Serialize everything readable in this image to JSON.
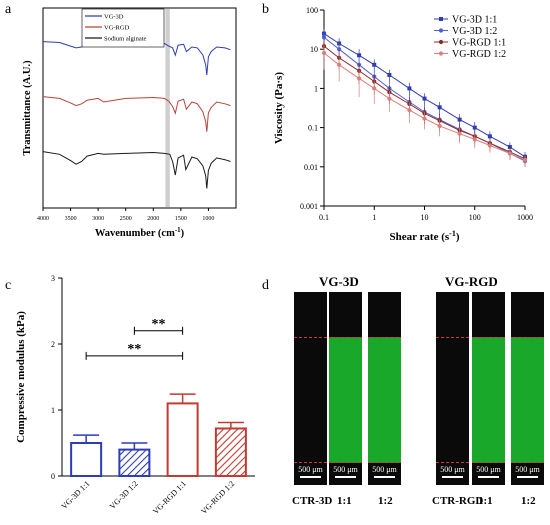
{
  "panels": {
    "a": "a",
    "b": "b",
    "c": "c",
    "d": "d"
  },
  "chart_data": [
    {
      "type": "line",
      "panel": "a",
      "xlabel": "Wavenumber (cm",
      "xlabel_sup": "-1",
      "xlabel_end": ")",
      "ylabel": "Transmittance (A.U.)",
      "x_ticks": [
        "4000",
        "3500",
        "3000",
        "2500",
        "2000",
        "1500",
        "1000"
      ],
      "xlim": [
        4000,
        500
      ],
      "highlight_band": [
        1780,
        1700
      ],
      "series": [
        {
          "name": "VG-3D",
          "color": "#2e3db5",
          "offset": 2.0,
          "x": [
            4000,
            3700,
            3500,
            3400,
            3300,
            3200,
            3000,
            2900,
            2500,
            2000,
            1800,
            1720,
            1650,
            1600,
            1550,
            1450,
            1400,
            1300,
            1200,
            1100,
            1050,
            1030,
            1000,
            950,
            850,
            700,
            600
          ],
          "y": [
            0.92,
            0.9,
            0.82,
            0.78,
            0.8,
            0.86,
            0.88,
            0.86,
            0.88,
            0.9,
            0.88,
            0.82,
            0.78,
            0.62,
            0.84,
            0.86,
            0.7,
            0.8,
            0.78,
            0.62,
            0.4,
            0.18,
            0.58,
            0.7,
            0.8,
            0.78,
            0.74
          ]
        },
        {
          "name": "VG-RGD",
          "color": "#b8433a",
          "offset": 1.0,
          "x": [
            4000,
            3700,
            3500,
            3400,
            3300,
            3200,
            3000,
            2900,
            2500,
            2000,
            1800,
            1720,
            1650,
            1600,
            1550,
            1450,
            1400,
            1300,
            1200,
            1100,
            1050,
            1030,
            1000,
            950,
            850,
            700,
            600
          ],
          "y": [
            0.92,
            0.88,
            0.78,
            0.72,
            0.76,
            0.84,
            0.88,
            0.8,
            0.88,
            0.9,
            0.88,
            0.82,
            0.7,
            0.55,
            0.82,
            0.86,
            0.64,
            0.8,
            0.76,
            0.58,
            0.36,
            0.14,
            0.56,
            0.68,
            0.8,
            0.76,
            0.72
          ]
        },
        {
          "name": "Sodium alginate",
          "color": "#1a1a1a",
          "offset": 0.0,
          "x": [
            4000,
            3700,
            3500,
            3400,
            3300,
            3200,
            3000,
            2900,
            2500,
            2000,
            1800,
            1700,
            1650,
            1600,
            1550,
            1450,
            1410,
            1300,
            1200,
            1100,
            1050,
            1030,
            1000,
            950,
            850,
            700,
            600
          ],
          "y": [
            0.92,
            0.86,
            0.72,
            0.64,
            0.7,
            0.82,
            0.88,
            0.86,
            0.88,
            0.9,
            0.88,
            0.86,
            0.7,
            0.4,
            0.78,
            0.84,
            0.52,
            0.8,
            0.76,
            0.6,
            0.38,
            0.1,
            0.5,
            0.66,
            0.78,
            0.74,
            0.7
          ]
        }
      ]
    },
    {
      "type": "line",
      "panel": "b",
      "xlabel": "Shear rate (s",
      "xlabel_sup": "-1",
      "xlabel_end": ")",
      "ylabel": "Viscosity (Pa·s)",
      "xscale": "log",
      "yscale": "log",
      "xlim": [
        0.1,
        1000
      ],
      "ylim": [
        0.001,
        100
      ],
      "x_ticks": [
        "0.1",
        "1",
        "10",
        "100",
        "1000"
      ],
      "y_ticks": [
        "0.001",
        "0.01",
        "0.1",
        "1",
        "10",
        "100"
      ],
      "legend_placement": "top-right",
      "series": [
        {
          "name": "VG-3D 1:1",
          "color": "#2e3db5",
          "marker": "square",
          "x": [
            0.1,
            0.2,
            0.5,
            1,
            2,
            5,
            10,
            20,
            50,
            100,
            200,
            500,
            1000
          ],
          "y": [
            25,
            14,
            7,
            4,
            2.2,
            1,
            0.55,
            0.33,
            0.16,
            0.1,
            0.06,
            0.032,
            0.018
          ],
          "err": [
            8,
            5,
            3,
            1.5,
            0.8,
            0.4,
            0.2,
            0.12,
            0.06,
            0.04,
            0.02,
            0.01,
            0.006
          ]
        },
        {
          "name": "VG-3D 1:2",
          "color": "#4f5fd0",
          "marker": "circle",
          "x": [
            0.1,
            0.2,
            0.5,
            1,
            2,
            5,
            10,
            20,
            50,
            100,
            200,
            500,
            1000
          ],
          "y": [
            20,
            10,
            4,
            2,
            1,
            0.45,
            0.25,
            0.16,
            0.09,
            0.06,
            0.04,
            0.022,
            0.014
          ],
          "err": [
            7,
            4,
            1.8,
            1,
            0.5,
            0.2,
            0.1,
            0.06,
            0.03,
            0.02,
            0.012,
            0.007,
            0.004
          ]
        },
        {
          "name": "VG-RGD 1:1",
          "color": "#8b2a2a",
          "marker": "circle",
          "x": [
            0.1,
            0.2,
            0.5,
            1,
            2,
            5,
            10,
            20,
            50,
            100,
            200,
            500,
            1000
          ],
          "y": [
            12,
            6,
            2.8,
            1.5,
            0.8,
            0.4,
            0.23,
            0.15,
            0.085,
            0.06,
            0.04,
            0.024,
            0.016
          ],
          "err": [
            6,
            3,
            1.5,
            0.8,
            0.4,
            0.2,
            0.11,
            0.07,
            0.04,
            0.025,
            0.015,
            0.008,
            0.005
          ]
        },
        {
          "name": "VG-RGD 1:2",
          "color": "#d9807a",
          "marker": "circle",
          "x": [
            0.1,
            0.2,
            0.5,
            1,
            2,
            5,
            10,
            20,
            50,
            100,
            200,
            500,
            1000
          ],
          "y": [
            8,
            4,
            1.8,
            1,
            0.55,
            0.28,
            0.17,
            0.11,
            0.07,
            0.05,
            0.035,
            0.022,
            0.015
          ],
          "err": [
            5,
            2.5,
            1.2,
            0.6,
            0.3,
            0.15,
            0.08,
            0.05,
            0.03,
            0.02,
            0.012,
            0.007,
            0.004
          ]
        }
      ]
    },
    {
      "type": "bar",
      "panel": "c",
      "ylabel": "Compressive modulus (kPa)",
      "ylim": [
        0,
        3
      ],
      "y_ticks": [
        "0",
        "1",
        "2",
        "3"
      ],
      "categories": [
        "VG-3D 1:1",
        "VG-3D 1:2",
        "VG-RGD 1:1",
        "VG-RGD 1:2"
      ],
      "values": [
        0.5,
        0.4,
        1.1,
        0.72
      ],
      "errors": [
        0.12,
        0.1,
        0.14,
        0.09
      ],
      "colors": [
        "#2e3db5",
        "#2e3db5",
        "#c23a30",
        "#c23a30"
      ],
      "patterns": [
        "none",
        "hatch",
        "none",
        "hatch"
      ],
      "significance": [
        {
          "from": 1,
          "to": 2,
          "label": "**",
          "y": 2.2
        },
        {
          "from": 0,
          "to": 2,
          "label": "**",
          "y": 1.82
        }
      ]
    }
  ],
  "micrographs": {
    "groups": [
      {
        "title": "VG-3D",
        "images": [
          {
            "label": "CTR-3D",
            "scale": "500 μm",
            "gel": false
          },
          {
            "label": "1:1",
            "scale": "500 μm",
            "gel": true
          },
          {
            "label": "1:2",
            "scale": "500 μm",
            "gel": true
          }
        ]
      },
      {
        "title": "VG-RGD",
        "images": [
          {
            "label": "CTR-RGD",
            "scale": "500 μm",
            "gel": false
          },
          {
            "label": "1:1",
            "scale": "500 μm",
            "gel": true
          },
          {
            "label": "1:2",
            "scale": "500 μm",
            "gel": true
          }
        ]
      }
    ]
  }
}
